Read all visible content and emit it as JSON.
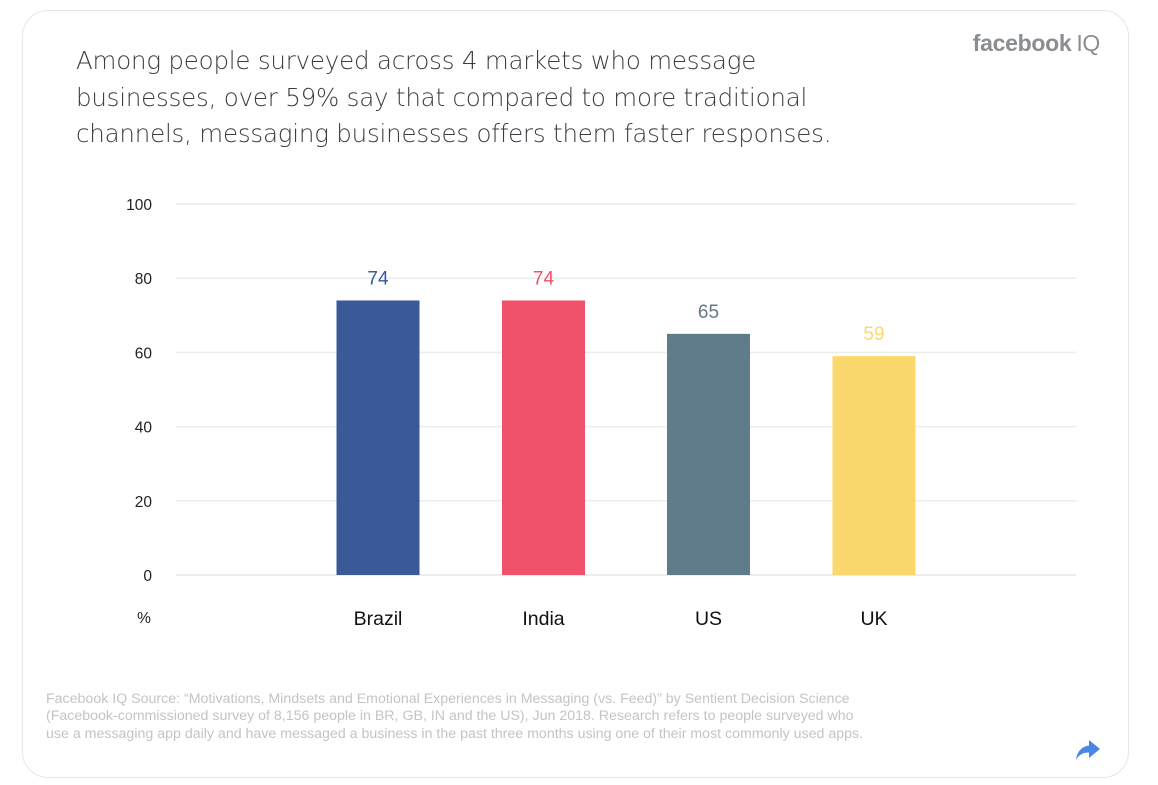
{
  "headline": "Among people surveyed across 4 markets who message businesses, over 59% say that compared to more traditional channels, messaging businesses offers them faster responses.",
  "logo": {
    "brand": "facebook",
    "suffix": "IQ"
  },
  "source": "Facebook IQ Source: “Motivations, Mindsets and Emotional Experiences in Messaging (vs. Feed)” by Sentient Decision Science (Facebook-commissioned survey of 8,156 people in BR, GB, IN and the US), Jun 2018. Research refers to people surveyed who use a messaging app daily and have messaged a business in the past three months using one of their most commonly used apps.",
  "share_icon": "share-arrow-icon",
  "chart_data": {
    "type": "bar",
    "categories": [
      "Brazil",
      "India",
      "US",
      "UK"
    ],
    "values": [
      74,
      74,
      65,
      59
    ],
    "value_labels": [
      "74",
      "74",
      "65",
      "59"
    ],
    "colors": [
      "#3b5998",
      "#f0526b",
      "#607b89",
      "#fbd86d"
    ],
    "ylabel": "%",
    "ylim": [
      0,
      100
    ],
    "yticks": [
      0,
      20,
      40,
      60,
      80,
      100
    ],
    "grid": true,
    "legend": "none"
  }
}
